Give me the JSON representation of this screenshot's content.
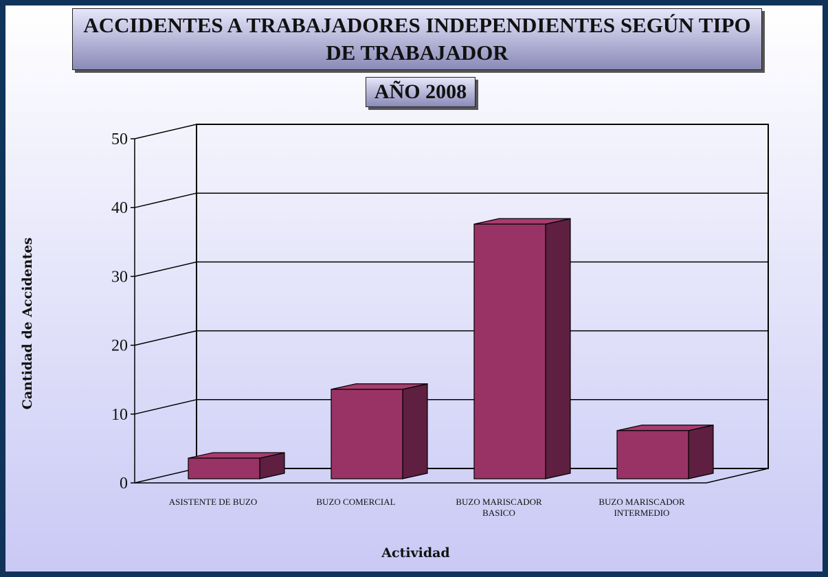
{
  "chart_data": {
    "type": "bar3d",
    "title": "ACCIDENTES A TRABAJADORES INDEPENDIENTES  SEGÚN TIPO DE TRABAJADOR",
    "subtitle": "AÑO 2008",
    "y_label": "Cantidad de Accidentes",
    "x_label": "Actividad",
    "categories": [
      "ASISTENTE DE BUZO",
      "BUZO COMERCIAL",
      "BUZO MARISCADOR BASICO",
      "BUZO MARISCADOR INTERMEDIO"
    ],
    "values": [
      3,
      13,
      37,
      7
    ],
    "color": "#993366",
    "ylim": [
      0,
      50
    ],
    "yticks": [
      0,
      10,
      20,
      30,
      40,
      50
    ],
    "grid": true
  }
}
